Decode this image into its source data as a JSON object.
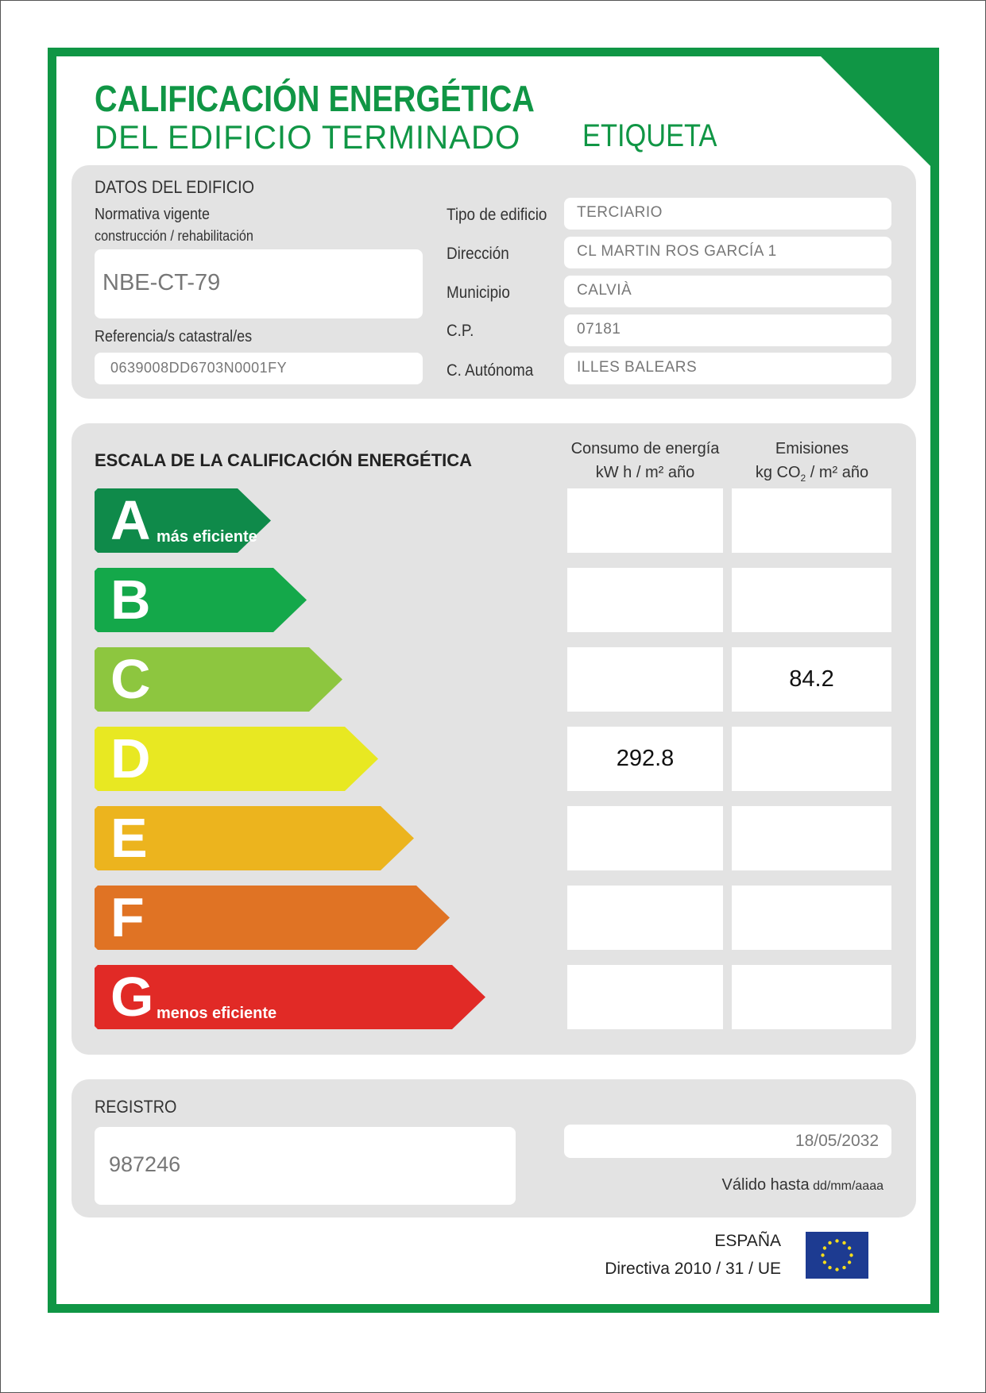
{
  "header": {
    "title1": "CALIFICACIÓN ENERGÉTICA",
    "title2": "DEL EDIFICIO TERMINADO",
    "label": "ETIQUETA"
  },
  "datos": {
    "heading": "DATOS DEL EDIFICIO",
    "normativa_label1": "Normativa vigente",
    "normativa_label2": "construcción / rehabilitación",
    "normativa": "NBE-CT-79",
    "referencia_label": "Referencia/s catastral/es",
    "referencia": "0639008DD6703N0001FY",
    "fields": [
      {
        "label": "Tipo de edificio",
        "value": "TERCIARIO"
      },
      {
        "label": "Dirección",
        "value": "CL MARTIN ROS GARCÍA 1"
      },
      {
        "label": "Municipio",
        "value": "CALVIÀ"
      },
      {
        "label": "C.P.",
        "value": "07181"
      },
      {
        "label": "C. Autónoma",
        "value": "ILLES BALEARS"
      }
    ]
  },
  "escala": {
    "heading": "ESCALA DE LA CALIFICACIÓN ENERGÉTICA",
    "col1_line1": "Consumo de energía",
    "col1_line2": "kW h  / m² año",
    "col2_line1": "Emisiones",
    "col2_line2a": "kg CO",
    "col2_sub": "2",
    "col2_line2b": " / m² año",
    "ratings": [
      {
        "letter": "A",
        "sub": "más eficiente",
        "color": "#0f8a4a",
        "consumo": "",
        "emisiones": ""
      },
      {
        "letter": "B",
        "sub": "",
        "color": "#14a84a",
        "consumo": "",
        "emisiones": ""
      },
      {
        "letter": "C",
        "sub": "",
        "color": "#8dc63f",
        "consumo": "",
        "emisiones": "84.2"
      },
      {
        "letter": "D",
        "sub": "",
        "color": "#e8e822",
        "consumo": "292.8",
        "emisiones": ""
      },
      {
        "letter": "E",
        "sub": "",
        "color": "#ecb41e",
        "consumo": "",
        "emisiones": ""
      },
      {
        "letter": "F",
        "sub": "",
        "color": "#e07324",
        "consumo": "",
        "emisiones": ""
      },
      {
        "letter": "G",
        "sub": "menos eficiente",
        "color": "#e12a26",
        "consumo": "",
        "emisiones": ""
      }
    ]
  },
  "registro": {
    "heading": "REGISTRO",
    "value": "987246",
    "date": "18/05/2032",
    "valid_label": "Válido hasta",
    "valid_format": "dd/mm/aaaa"
  },
  "footer": {
    "country": "ESPAÑA",
    "directive": "Directiva 2010 / 31 / UE"
  },
  "colors": {
    "brand": "#109645"
  }
}
